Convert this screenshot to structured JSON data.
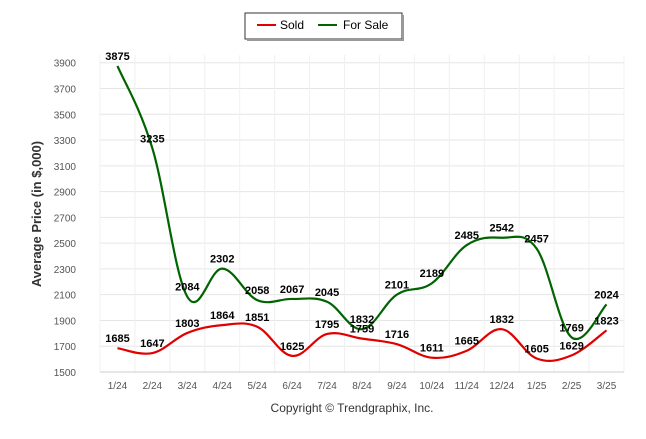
{
  "chart_data": {
    "type": "line",
    "categories": [
      "1/24",
      "2/24",
      "3/24",
      "4/24",
      "5/24",
      "6/24",
      "7/24",
      "8/24",
      "9/24",
      "10/24",
      "11/24",
      "12/24",
      "1/25",
      "2/25",
      "3/25"
    ],
    "series": [
      {
        "name": "Sold",
        "color": "#e00000",
        "values": [
          1685,
          1647,
          1803,
          1864,
          1851,
          1625,
          1795,
          1759,
          1716,
          1611,
          1665,
          1832,
          1605,
          1629,
          1823
        ]
      },
      {
        "name": "For Sale",
        "color": "#006400",
        "values": [
          3875,
          3235,
          2084,
          2302,
          2058,
          2067,
          2045,
          1832,
          2101,
          2189,
          2485,
          2542,
          2457,
          1769,
          2024
        ]
      }
    ],
    "ylabel": "Average Price (in $,000)",
    "xlabel": "",
    "yticks": [
      1500,
      1700,
      1900,
      2100,
      2300,
      2500,
      2700,
      2900,
      3100,
      3300,
      3500,
      3700,
      3900
    ],
    "ylim": [
      1500,
      3960
    ],
    "grid": true,
    "legend_position": "top-center"
  },
  "footer": {
    "copyright": "Copyright © Trendgraphix, Inc."
  }
}
